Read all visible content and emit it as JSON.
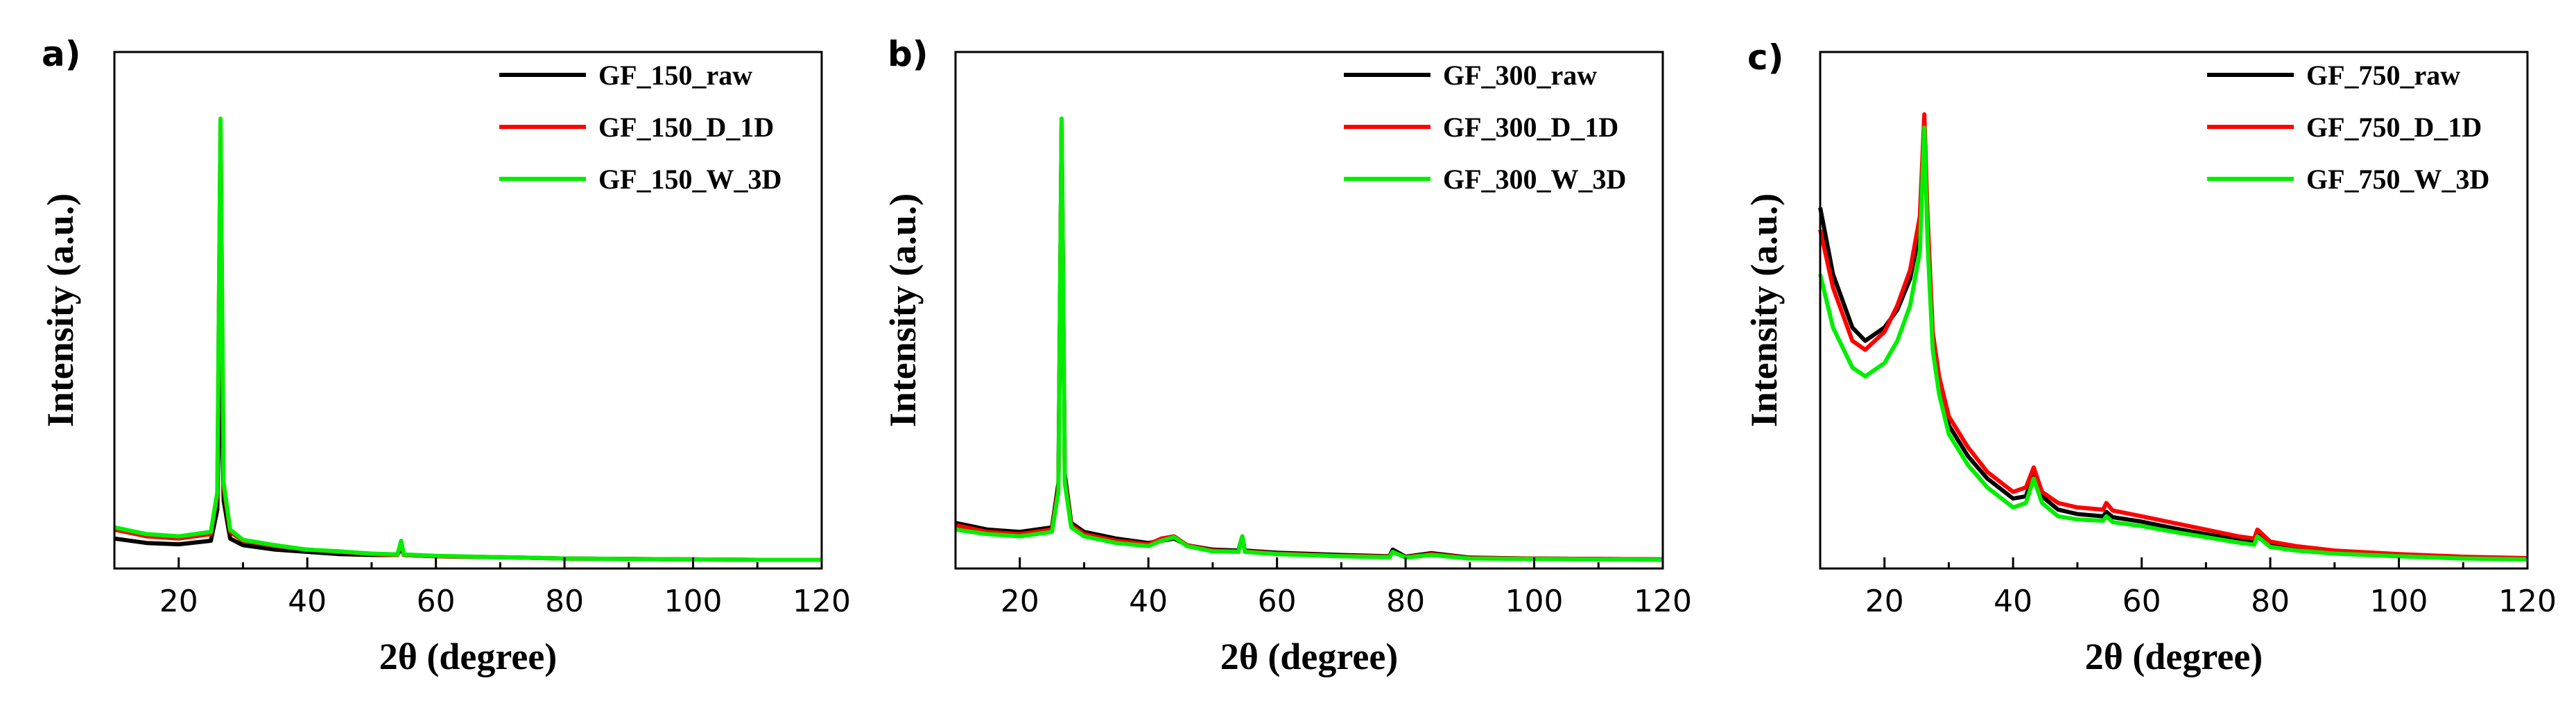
{
  "colors": {
    "raw": "#000000",
    "D_1D": "#ff0000",
    "W_3D": "#00ee00"
  },
  "chart_data": [
    {
      "type": "line",
      "panel": "a)",
      "xlabel": "2θ (degree)",
      "ylabel": "Intensity (a.u.)",
      "xlim": [
        10,
        120
      ],
      "ylim": [
        0,
        100
      ],
      "xticks": [
        "20",
        "40",
        "60",
        "80",
        "100",
        "120"
      ],
      "yticks_labeled": false,
      "legend_position": "top-right",
      "series": [
        {
          "name": "GF_150_raw",
          "x": [
            10,
            15,
            20,
            25,
            26,
            26.5,
            27,
            28,
            30,
            35,
            40,
            45,
            50,
            54,
            54.6,
            55,
            60,
            70,
            80,
            90,
            100,
            110,
            120
          ],
          "y": [
            5.5,
            4.5,
            4.2,
            5,
            12,
            51,
            14,
            5.5,
            4,
            3,
            2.5,
            2,
            1.8,
            1.8,
            3.5,
            1.8,
            1.5,
            1.3,
            1,
            0.9,
            0.8,
            0.7,
            0.7
          ]
        },
        {
          "name": "GF_150_D_1D",
          "x": [
            10,
            15,
            20,
            25,
            26,
            26.5,
            27,
            28,
            30,
            35,
            40,
            45,
            50,
            54,
            54.6,
            55,
            60,
            70,
            80,
            90,
            100,
            110,
            120
          ],
          "y": [
            7.5,
            6,
            5.5,
            6.5,
            15,
            100,
            17,
            7,
            5,
            3.8,
            3,
            2.5,
            2,
            1.8,
            4.5,
            1.8,
            1.5,
            1.3,
            1,
            0.9,
            0.8,
            0.7,
            0.7
          ]
        },
        {
          "name": "GF_150_W_3D",
          "x": [
            10,
            15,
            20,
            25,
            26,
            26.5,
            27,
            28,
            30,
            35,
            40,
            45,
            50,
            54,
            54.6,
            55,
            60,
            70,
            80,
            90,
            100,
            110,
            120
          ],
          "y": [
            8,
            6.5,
            6,
            7,
            16,
            100,
            18,
            7.5,
            5.2,
            4,
            3,
            2.6,
            2.1,
            1.9,
            5,
            1.9,
            1.6,
            1.3,
            1,
            0.9,
            0.8,
            0.7,
            0.7
          ]
        }
      ]
    },
    {
      "type": "line",
      "panel": "b)",
      "xlabel": "2θ (degree)",
      "ylabel": "Intensity (a.u.)",
      "xlim": [
        10,
        120
      ],
      "ylim": [
        0,
        100
      ],
      "xticks": [
        "20",
        "40",
        "60",
        "80",
        "100",
        "120"
      ],
      "yticks_labeled": false,
      "legend_position": "top-right",
      "series": [
        {
          "name": "GF_300_raw",
          "x": [
            10,
            15,
            20,
            25,
            26,
            26.5,
            27,
            28,
            30,
            35,
            40,
            42,
            44,
            46,
            50,
            54,
            54.6,
            55,
            60,
            70,
            77.5,
            78,
            80,
            84,
            90,
            100,
            110,
            120
          ],
          "y": [
            9,
            7.5,
            7,
            8,
            18,
            100,
            20,
            9,
            7,
            5.5,
            4.5,
            5,
            5.5,
            4,
            3,
            2.8,
            6,
            2.8,
            2.3,
            1.8,
            1.5,
            3,
            1.4,
            2.2,
            1.2,
            1,
            0.9,
            0.8
          ]
        },
        {
          "name": "GF_300_D_1D",
          "x": [
            10,
            15,
            20,
            25,
            26,
            26.5,
            27,
            28,
            30,
            35,
            40,
            42,
            44,
            46,
            50,
            54,
            54.6,
            55,
            60,
            70,
            77.5,
            78,
            80,
            84,
            90,
            100,
            110,
            120
          ],
          "y": [
            8.5,
            7,
            6.5,
            7.5,
            17,
            99,
            19,
            8.5,
            6.5,
            5,
            4.2,
            5.5,
            6,
            4,
            2.8,
            2.6,
            5.5,
            2.6,
            2.1,
            1.6,
            1.4,
            2.5,
            1.3,
            2,
            1.1,
            1,
            0.9,
            0.8
          ]
        },
        {
          "name": "GF_300_W_3D",
          "x": [
            10,
            15,
            20,
            25,
            26,
            26.5,
            27,
            28,
            30,
            35,
            40,
            42,
            44,
            46,
            50,
            54,
            54.6,
            55,
            60,
            70,
            77.5,
            78,
            80,
            84,
            90,
            100,
            110,
            120
          ],
          "y": [
            7.5,
            6.5,
            6,
            7,
            16,
            100,
            18,
            8,
            6,
            4.5,
            3.8,
            5,
            5.8,
            3.8,
            2.6,
            2.5,
            6,
            2.5,
            2,
            1.5,
            1.3,
            2.5,
            1.2,
            1.8,
            1,
            0.9,
            0.8,
            0.7
          ]
        }
      ]
    },
    {
      "type": "line",
      "panel": "c)",
      "xlabel": "2θ (degree)",
      "ylabel": "Intensity (a.u.)",
      "xlim": [
        10,
        120
      ],
      "ylim": [
        0,
        100
      ],
      "xticks": [
        "20",
        "40",
        "60",
        "80",
        "100",
        "120"
      ],
      "yticks_labeled": false,
      "legend_position": "top-right",
      "series": [
        {
          "name": "GF_750_raw",
          "x": [
            10,
            12,
            15,
            17,
            20,
            22,
            24,
            25.5,
            26.2,
            26.7,
            27.5,
            28.5,
            30,
            33,
            36,
            40,
            42,
            43.2,
            44.5,
            47,
            50,
            54,
            54.5,
            55.5,
            60,
            65,
            70,
            75,
            77.5,
            78,
            80,
            84,
            90,
            100,
            110,
            120
          ],
          "y": [
            80,
            65,
            53,
            50,
            53,
            57,
            64,
            75,
            100,
            75,
            50,
            40,
            31,
            24,
            19,
            14.5,
            15,
            20.5,
            15,
            12,
            11,
            10.5,
            11.5,
            10.3,
            9.3,
            7.8,
            6.5,
            5.2,
            4.6,
            6.5,
            4,
            3.2,
            2.5,
            1.8,
            1.3,
            1
          ]
        },
        {
          "name": "GF_750_D_1D",
          "x": [
            10,
            12,
            15,
            17,
            20,
            22,
            24,
            25.5,
            26.2,
            26.7,
            27.5,
            28.5,
            30,
            33,
            36,
            40,
            42,
            43.2,
            44.5,
            47,
            50,
            54,
            54.5,
            55.5,
            60,
            65,
            70,
            75,
            77.5,
            78,
            80,
            84,
            90,
            100,
            110,
            120
          ],
          "y": [
            75,
            62,
            50,
            48,
            52,
            58,
            66,
            78,
            101,
            78,
            52,
            42,
            33,
            26,
            20.5,
            16,
            17,
            21.5,
            16,
            13.5,
            12.5,
            12,
            13.5,
            11.8,
            10.5,
            9,
            7.5,
            6,
            5.5,
            7.5,
            4.8,
            3.8,
            2.8,
            2,
            1.4,
            1.1
          ]
        },
        {
          "name": "GF_750_W_3D",
          "x": [
            10,
            12,
            15,
            17,
            20,
            22,
            24,
            25.5,
            26.2,
            26.7,
            27.5,
            28.5,
            30,
            33,
            36,
            40,
            42,
            43.2,
            44.5,
            47,
            50,
            54,
            54.5,
            55.5,
            60,
            65,
            70,
            75,
            77.5,
            78,
            80,
            84,
            90,
            100,
            110,
            120
          ],
          "y": [
            65,
            53,
            44,
            42,
            45,
            50,
            58,
            70,
            98,
            72,
            48,
            38,
            29,
            22,
            17,
            12.5,
            13.5,
            19,
            13.5,
            10.5,
            9.8,
            9.5,
            10.5,
            9.2,
            8.3,
            7,
            5.8,
            4.6,
            4.1,
            6,
            3.6,
            2.8,
            2.1,
            1.5,
            1,
            0.8
          ]
        }
      ]
    }
  ]
}
